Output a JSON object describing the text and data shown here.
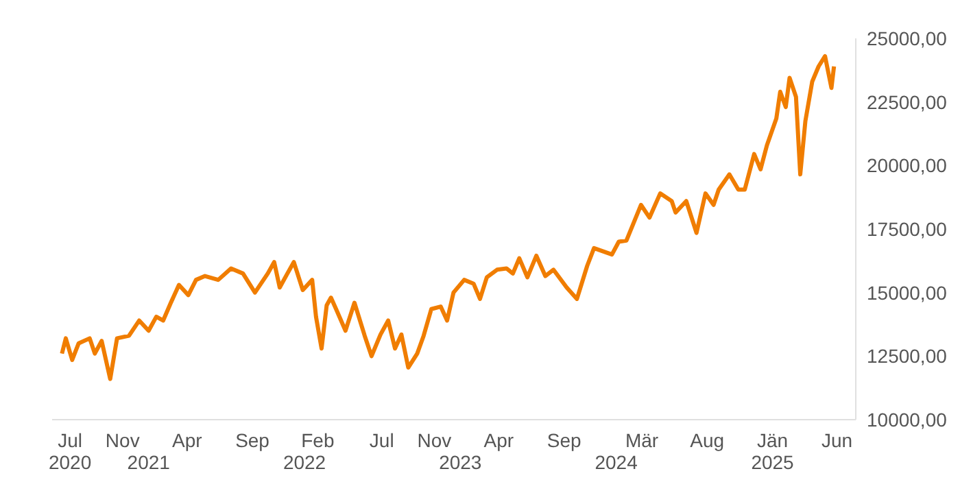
{
  "chart_data": {
    "type": "line",
    "x": [
      "2020-06-12",
      "2020-06-21",
      "2020-07-06",
      "2020-07-21",
      "2020-08-16",
      "2020-08-28",
      "2020-09-13",
      "2020-10-03",
      "2020-10-19",
      "2020-11-16",
      "2020-12-10",
      "2021-01-01",
      "2021-01-19",
      "2021-02-04",
      "2021-02-22",
      "2021-03-13",
      "2021-04-04",
      "2021-04-22",
      "2021-05-13",
      "2021-06-13",
      "2021-07-13",
      "2021-08-10",
      "2021-09-07",
      "2021-10-07",
      "2021-10-22",
      "2021-11-04",
      "2021-11-22",
      "2021-12-07",
      "2021-12-28",
      "2022-01-19",
      "2022-01-28",
      "2022-02-10",
      "2022-02-22",
      "2022-03-04",
      "2022-03-16",
      "2022-04-07",
      "2022-04-28",
      "2022-05-22",
      "2022-06-07",
      "2022-06-28",
      "2022-07-16",
      "2022-08-01",
      "2022-08-16",
      "2022-09-01",
      "2022-09-22",
      "2022-10-07",
      "2022-10-25",
      "2022-11-16",
      "2022-12-01",
      "2022-12-16",
      "2023-01-10",
      "2023-02-01",
      "2023-02-16",
      "2023-03-04",
      "2023-03-28",
      "2023-04-19",
      "2023-05-04",
      "2023-05-19",
      "2023-06-07",
      "2023-06-28",
      "2023-07-19",
      "2023-08-07",
      "2023-09-07",
      "2023-10-01",
      "2023-10-25",
      "2023-11-10",
      "2023-12-22",
      "2024-01-07",
      "2024-01-25",
      "2024-02-28",
      "2024-03-19",
      "2024-04-13",
      "2024-05-10",
      "2024-05-19",
      "2024-06-13",
      "2024-07-07",
      "2024-07-28",
      "2024-08-16",
      "2024-08-28",
      "2024-09-22",
      "2024-10-13",
      "2024-10-28",
      "2024-11-19",
      "2024-12-04",
      "2024-12-19",
      "2025-01-10",
      "2025-01-19",
      "2025-02-01",
      "2025-02-10",
      "2025-02-25",
      "2025-03-07",
      "2025-03-19",
      "2025-04-04",
      "2025-04-19",
      "2025-05-04",
      "2025-05-19",
      "2025-05-25"
    ],
    "series": [
      {
        "color": "#f07d00",
        "values": [
          12600,
          13200,
          12350,
          13000,
          13200,
          12600,
          13100,
          11600,
          13200,
          13300,
          13900,
          13500,
          14050,
          13900,
          14600,
          15300,
          14900,
          15500,
          15650,
          15500,
          15950,
          15750,
          15000,
          15750,
          16200,
          15200,
          15750,
          16200,
          15100,
          15500,
          14050,
          12800,
          14500,
          14800,
          14350,
          13500,
          14600,
          13300,
          12500,
          13350,
          13900,
          12800,
          13350,
          12050,
          12600,
          13300,
          14350,
          14450,
          13900,
          15000,
          15500,
          15350,
          14750,
          15600,
          15900,
          15950,
          15750,
          16350,
          15600,
          16450,
          15650,
          15900,
          15200,
          14750,
          16050,
          16750,
          16500,
          17000,
          17050,
          18450,
          17950,
          18900,
          18600,
          18150,
          18600,
          17350,
          18900,
          18450,
          19050,
          19650,
          19050,
          19050,
          20450,
          19850,
          20800,
          21850,
          22900,
          22300,
          23450,
          22700,
          19650,
          21750,
          23300,
          23900,
          24300,
          23050,
          23900
        ]
      }
    ],
    "xlim": [
      "2020-05-20",
      "2025-07-15"
    ],
    "xticks": [
      {
        "value": "2020-07-01",
        "label": "Jul"
      },
      {
        "value": "2020-11-01",
        "label": "Nov"
      },
      {
        "value": "2021-04-01",
        "label": "Apr"
      },
      {
        "value": "2021-09-01",
        "label": "Sep"
      },
      {
        "value": "2022-02-01",
        "label": "Feb"
      },
      {
        "value": "2022-07-01",
        "label": "Jul"
      },
      {
        "value": "2022-11-01",
        "label": "Nov"
      },
      {
        "value": "2023-04-01",
        "label": "Apr"
      },
      {
        "value": "2023-09-01",
        "label": "Sep"
      },
      {
        "value": "2024-03-01",
        "label": "Mär"
      },
      {
        "value": "2024-08-01",
        "label": "Aug"
      },
      {
        "value": "2025-01-01",
        "label": "Jän"
      },
      {
        "value": "2025-06-01",
        "label": "Jun"
      }
    ],
    "x2lim": [
      "2020-05-20",
      "2025-07-15"
    ],
    "x2ticks": [
      {
        "value": "2020-07-01",
        "label": "2020"
      },
      {
        "value": "2021-01-01",
        "label": "2021"
      },
      {
        "value": "2022-01-01",
        "label": "2022"
      },
      {
        "value": "2023-01-01",
        "label": "2023"
      },
      {
        "value": "2024-01-01",
        "label": "2024"
      },
      {
        "value": "2025-01-01",
        "label": "2025"
      }
    ],
    "ylim": [
      10000,
      25000
    ],
    "yticks": [
      {
        "value": 10000,
        "label": "10000,00"
      },
      {
        "value": 12500,
        "label": "12500,00"
      },
      {
        "value": 15000,
        "label": "15000,00"
      },
      {
        "value": 17500,
        "label": "17500,00"
      },
      {
        "value": 20000,
        "label": "20000,00"
      },
      {
        "value": 22500,
        "label": "22500,00"
      },
      {
        "value": 25000,
        "label": "25000,00"
      }
    ],
    "grid": false,
    "legend": false,
    "marker": "none",
    "line_style": "solid"
  }
}
